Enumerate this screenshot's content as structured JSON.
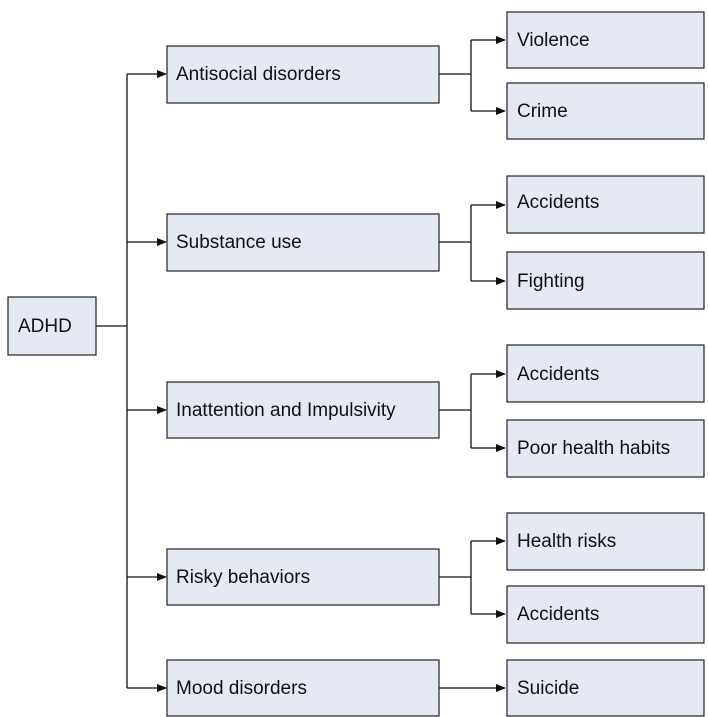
{
  "root": {
    "label": "ADHD"
  },
  "categories": [
    {
      "label": "Antisocial disorders",
      "outcomes": [
        "Violence",
        "Crime"
      ]
    },
    {
      "label": "Substance use",
      "outcomes": [
        "Accidents",
        "Fighting"
      ]
    },
    {
      "label": "Inattention and Impulsivity",
      "outcomes": [
        "Accidents",
        "Poor health habits"
      ]
    },
    {
      "label": "Risky behaviors",
      "outcomes": [
        "Health risks",
        "Accidents"
      ]
    },
    {
      "label": "Mood disorders",
      "outcomes": [
        "Suicide"
      ]
    }
  ]
}
